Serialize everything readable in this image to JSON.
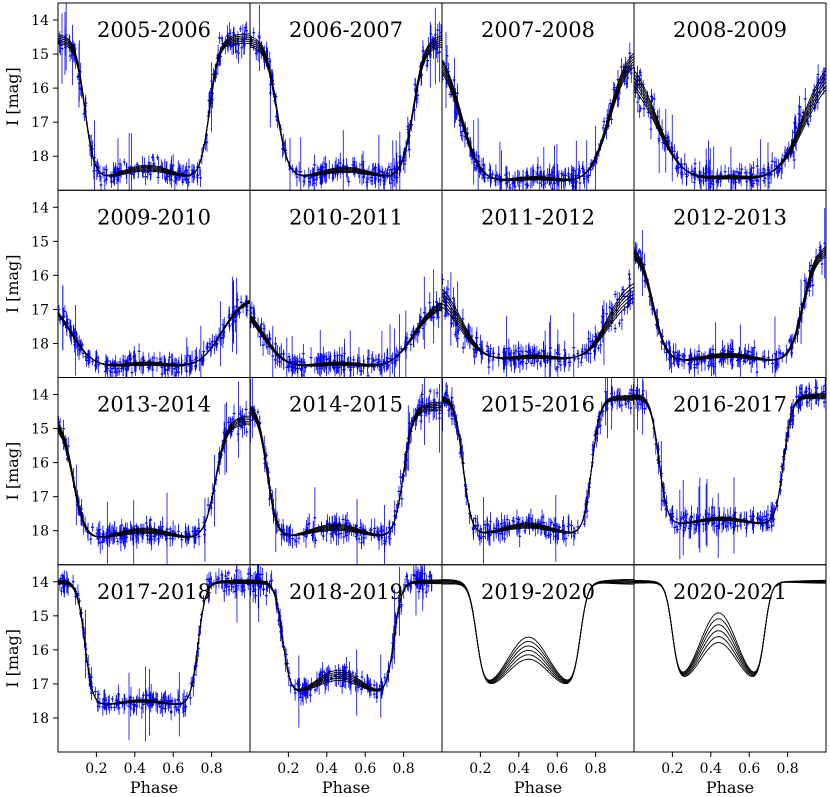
{
  "chart_data": {
    "type": "scatter",
    "ylabel": "I [mag]",
    "xlabel": "Phase",
    "y_inverted": true,
    "xlim": [
      0.0,
      1.0
    ],
    "ylim": [
      19.0,
      13.5
    ],
    "x_ticks": [
      "0.2",
      "0.4",
      "0.6",
      "0.8"
    ],
    "y_ticks": [
      "14",
      "15",
      "16",
      "17",
      "18"
    ],
    "colors": {
      "data": "#0000ff",
      "model": "#000000",
      "frame": "#000000"
    },
    "panels": [
      {
        "title": "2005-2006",
        "base": 14.55,
        "depth": 4.15,
        "hump": 0.35,
        "ingress": 0.14,
        "egress": 0.79,
        "width": 0.025,
        "spread": 0.5,
        "data_range": [
          0,
          1
        ]
      },
      {
        "title": "2006-2007",
        "base": 14.6,
        "depth": 4.1,
        "hump": 0.3,
        "ingress": 0.14,
        "egress": 0.85,
        "width": 0.03,
        "spread": 0.55,
        "data_range": [
          0,
          1
        ]
      },
      {
        "title": "2007-2008",
        "base": 14.9,
        "depth": 3.95,
        "hump": 0.2,
        "ingress": 0.1,
        "egress": 0.87,
        "width": 0.05,
        "spread": 0.7,
        "data_range": [
          0,
          1
        ]
      },
      {
        "title": "2008-2009",
        "base": 15.2,
        "depth": 3.65,
        "hump": 0.2,
        "ingress": 0.12,
        "egress": 0.88,
        "width": 0.07,
        "spread": 1.0,
        "data_range": [
          0,
          1
        ]
      },
      {
        "title": "2009-2010",
        "base": 16.6,
        "depth": 2.2,
        "hump": 0.2,
        "ingress": 0.07,
        "egress": 0.85,
        "width": 0.06,
        "spread": 0.15,
        "data_range": [
          0,
          1
        ]
      },
      {
        "title": "2010-2011",
        "base": 16.75,
        "depth": 2.05,
        "hump": 0.2,
        "ingress": 0.07,
        "egress": 0.85,
        "width": 0.06,
        "spread": 0.35,
        "data_range": [
          0,
          1
        ]
      },
      {
        "title": "2011-2012",
        "base": 16.3,
        "depth": 2.3,
        "hump": 0.2,
        "ingress": 0.1,
        "egress": 0.86,
        "width": 0.06,
        "spread": 0.95,
        "data_range": [
          0,
          1
        ]
      },
      {
        "title": "2012-2013",
        "base": 15.2,
        "depth": 3.4,
        "hump": 0.25,
        "ingress": 0.1,
        "egress": 0.88,
        "width": 0.035,
        "spread": 0.5,
        "data_range": [
          0,
          1
        ]
      },
      {
        "title": "2013-2014",
        "base": 14.75,
        "depth": 3.55,
        "hump": 0.3,
        "ingress": 0.08,
        "egress": 0.82,
        "width": 0.03,
        "spread": 0.45,
        "data_range": [
          0,
          1
        ]
      },
      {
        "title": "2014-2015",
        "base": 14.35,
        "depth": 3.9,
        "hump": 0.35,
        "ingress": 0.09,
        "egress": 0.8,
        "width": 0.025,
        "spread": 0.45,
        "data_range": [
          0,
          1
        ]
      },
      {
        "title": "2015-2016",
        "base": 14.1,
        "depth": 4.05,
        "hump": 0.3,
        "ingress": 0.11,
        "egress": 0.78,
        "width": 0.022,
        "spread": 0.25,
        "data_range": [
          0,
          1
        ]
      },
      {
        "title": "2016-2017",
        "base": 14.05,
        "depth": 3.8,
        "hump": 0.2,
        "ingress": 0.13,
        "egress": 0.78,
        "width": 0.022,
        "spread": 0.25,
        "data_range": [
          0,
          1
        ]
      },
      {
        "title": "2017-2018",
        "base": 14.0,
        "depth": 3.65,
        "hump": 0.15,
        "ingress": 0.14,
        "egress": 0.73,
        "width": 0.02,
        "spread": 0.2,
        "data_range": [
          0,
          1
        ]
      },
      {
        "title": "2018-2019",
        "base": 14.0,
        "depth": 3.35,
        "hump": 0.6,
        "ingress": 0.17,
        "egress": 0.75,
        "width": 0.02,
        "spread": 0.2,
        "data_range": [
          0,
          0.95
        ]
      },
      {
        "title": "2019-2020",
        "base": 14.0,
        "depth": 3.25,
        "hump": 1.3,
        "ingress": 0.18,
        "egress": 0.72,
        "width": 0.02,
        "spread": 0.25,
        "data_range": []
      },
      {
        "title": "2020-2021",
        "base": 14.0,
        "depth": 3.1,
        "hump": 1.75,
        "ingress": 0.2,
        "egress": 0.68,
        "width": 0.018,
        "spread": 0.15,
        "data_range": []
      }
    ]
  }
}
